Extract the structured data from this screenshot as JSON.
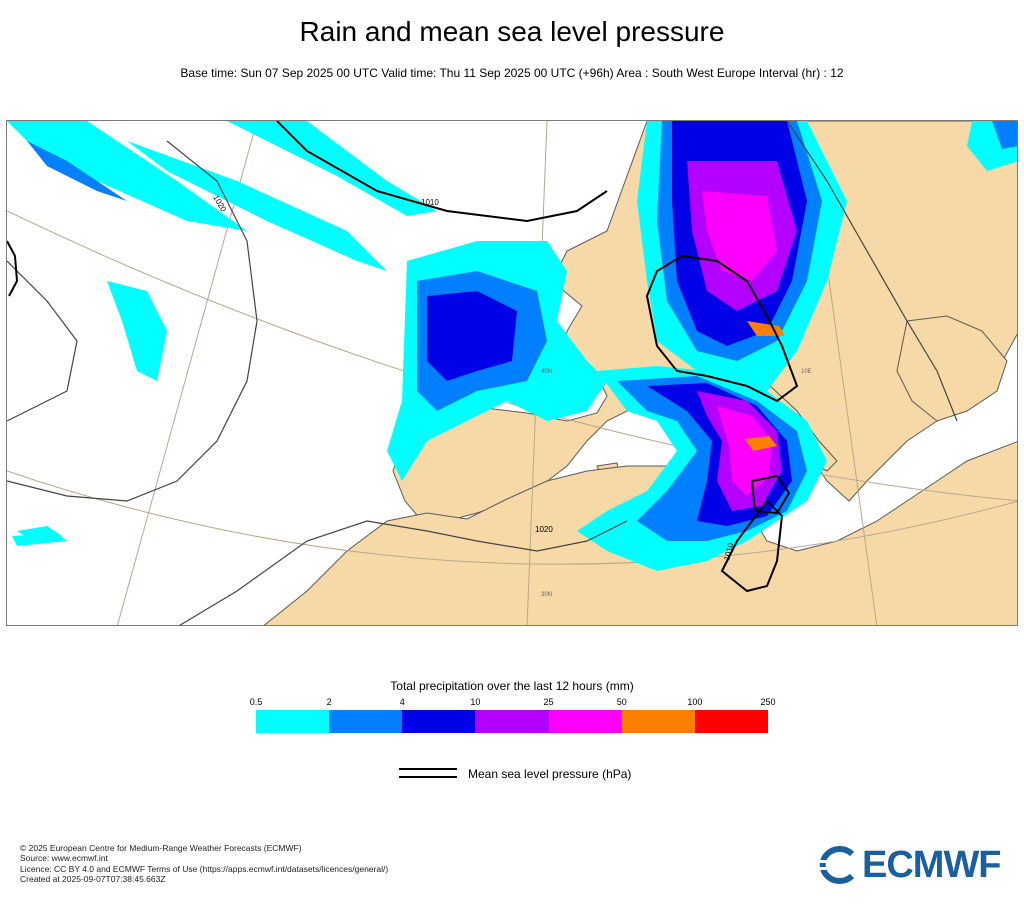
{
  "header": {
    "title": "Rain and mean sea level pressure",
    "subtitle": "Base time: Sun 07 Sep 2025 00 UTC Valid time: Thu 11 Sep 2025 00 UTC (+96h) Area : South West Europe Interval (hr) : 12"
  },
  "map": {
    "isobar_labels": [
      {
        "id": "isobar-1020-atlantic",
        "text": "1020"
      },
      {
        "id": "isobar-1010-north",
        "text": "1010"
      },
      {
        "id": "isobar-1020-africa",
        "text": "1020"
      },
      {
        "id": "isobar-1010-libya",
        "text": "1010"
      }
    ],
    "graticule_labels": [
      {
        "id": "lat-40n",
        "text": "40N"
      },
      {
        "id": "lat-30n",
        "text": "30N"
      },
      {
        "id": "lon-10e",
        "text": "10E"
      }
    ],
    "colors": {
      "land": "#f7d9a8",
      "sea": "#ffffff",
      "coast": "#5a5a5a",
      "graticule": "#b5a88c",
      "isobar": "#000000"
    }
  },
  "legend": {
    "title": "Total precipitation over the last 12 hours (mm)",
    "ticks": [
      "0.5",
      "2",
      "4",
      "10",
      "25",
      "50",
      "100",
      "250"
    ],
    "colors": [
      "#00ffff",
      "#0080ff",
      "#0000e6",
      "#b400ff",
      "#ff00ff",
      "#ff8000",
      "#ff0000"
    ],
    "mslp_label": "Mean sea level pressure (hPa)"
  },
  "footer": {
    "lines": [
      "© 2025 European Centre for Medium-Range Weather Forecasts (ECMWF)",
      "Source: www.ecmwf.int",
      "Licence: CC BY 4.0 and ECMWF Terms of Use (https://apps.ecmwf.int/datasets/licences/general/)",
      "Created at 2025-09-07T07:38:45.663Z"
    ],
    "logo_text": "ECMWF"
  }
}
